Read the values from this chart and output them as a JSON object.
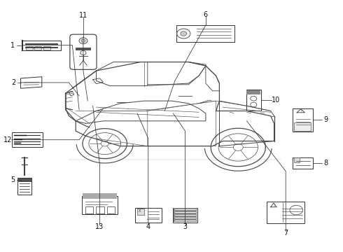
{
  "bg_color": "#ffffff",
  "truck_color": "#4a4a4a",
  "line_color": "#333333",
  "box_items": [
    {
      "num": "1",
      "bx": 0.12,
      "by": 0.82,
      "bw": 0.115,
      "bh": 0.04
    },
    {
      "num": "2",
      "bx": 0.09,
      "by": 0.67,
      "bw": 0.06,
      "bh": 0.038
    },
    {
      "num": "3",
      "bx": 0.54,
      "by": 0.14,
      "bw": 0.072,
      "bh": 0.06
    },
    {
      "num": "4",
      "bx": 0.43,
      "by": 0.14,
      "bw": 0.078,
      "bh": 0.06
    },
    {
      "num": "5",
      "bx": 0.07,
      "by": 0.25,
      "bw": 0.038,
      "bh": 0.11
    },
    {
      "num": "6",
      "bx": 0.6,
      "by": 0.87,
      "bw": 0.17,
      "bh": 0.065
    },
    {
      "num": "7",
      "bx": 0.83,
      "by": 0.15,
      "bw": 0.11,
      "bh": 0.085
    },
    {
      "num": "8",
      "bx": 0.88,
      "by": 0.35,
      "bw": 0.058,
      "bh": 0.045
    },
    {
      "num": "9",
      "bx": 0.88,
      "by": 0.52,
      "bw": 0.058,
      "bh": 0.09
    },
    {
      "num": "10",
      "bx": 0.74,
      "by": 0.6,
      "bw": 0.042,
      "bh": 0.08
    },
    {
      "num": "11",
      "bx": 0.24,
      "by": 0.8,
      "bw": 0.058,
      "bh": 0.12
    },
    {
      "num": "12",
      "bx": 0.08,
      "by": 0.44,
      "bw": 0.09,
      "bh": 0.055
    },
    {
      "num": "13",
      "bx": 0.29,
      "by": 0.18,
      "bw": 0.105,
      "bh": 0.075
    }
  ]
}
